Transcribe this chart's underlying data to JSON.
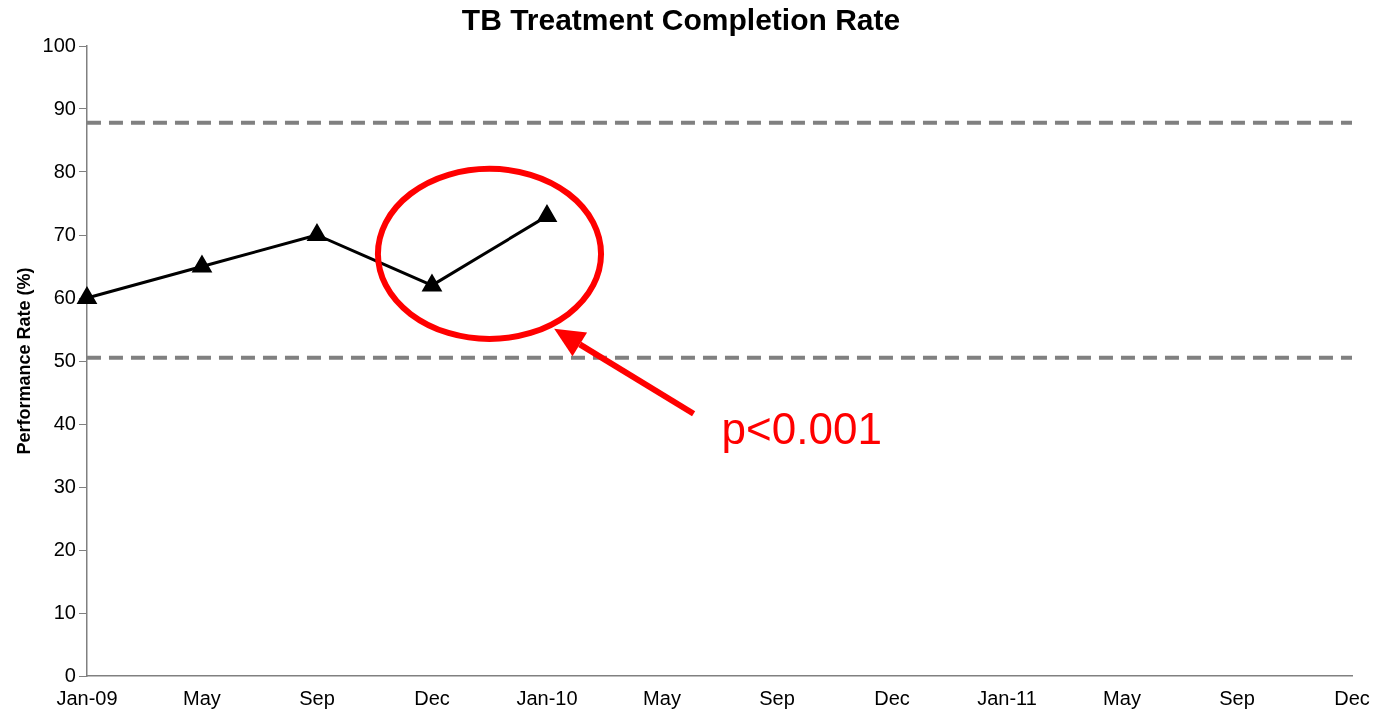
{
  "chart_data": {
    "type": "line",
    "title": "TB Treatment Completion Rate",
    "ylabel": "Performance Rate (%)",
    "categories": [
      "Jan-09",
      "May",
      "Sep",
      "Dec",
      "Jan-10",
      "May",
      "Sep",
      "Dec",
      "Jan-11",
      "May",
      "Sep",
      "Dec"
    ],
    "series": [
      {
        "color": "#000000",
        "values": [
          60,
          65,
          70,
          62,
          73,
          null,
          null,
          null,
          null,
          null,
          null,
          null
        ]
      }
    ],
    "ylim": [
      0,
      100
    ],
    "yticks": [
      0,
      10,
      20,
      30,
      40,
      50,
      60,
      70,
      80,
      90,
      100
    ],
    "grid": false,
    "legend": false,
    "marker": "triangle",
    "line_style": "solid",
    "ref_lines": [
      {
        "axis": "y",
        "value": 87.8,
        "color": "#808080",
        "line_style": "dashed"
      },
      {
        "axis": "y",
        "value": 50.5,
        "color": "#808080",
        "line_style": "dashed"
      }
    ],
    "annotations": [
      "p<0.001"
    ]
  }
}
